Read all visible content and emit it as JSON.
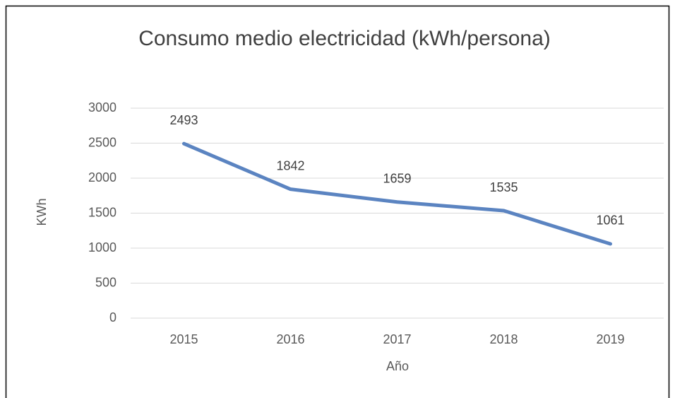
{
  "chart_data": {
    "type": "line",
    "title": "Consumo medio electricidad (kWh/persona)",
    "x_label": "Año",
    "y_label": "KWh",
    "categories": [
      "2015",
      "2016",
      "2017",
      "2018",
      "2019"
    ],
    "series": [
      {
        "name": "Consumo",
        "color": "#5b84c1",
        "values": [
          2493,
          1842,
          1659,
          1535,
          1061
        ]
      }
    ],
    "ylim": [
      0,
      3000
    ],
    "yticks": [
      0,
      500,
      1000,
      1500,
      2000,
      2500,
      3000
    ],
    "grid": true,
    "data_labels": true
  }
}
